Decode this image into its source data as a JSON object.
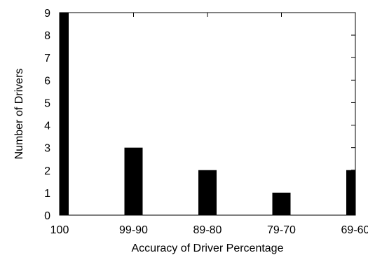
{
  "chart_data": {
    "type": "bar",
    "title": "",
    "xlabel": "Accuracy of Driver Percentage",
    "ylabel": "Number of Drivers",
    "categories": [
      "100",
      "99-90",
      "89-80",
      "79-70",
      "69-60"
    ],
    "values": [
      9,
      3,
      2,
      1,
      2
    ],
    "ylim": [
      0,
      9
    ],
    "yticks": [
      "0",
      "1",
      "2",
      "3",
      "4",
      "5",
      "6",
      "7",
      "8",
      "9"
    ],
    "grid": false,
    "legend": "none",
    "bar_color": "#000000"
  }
}
